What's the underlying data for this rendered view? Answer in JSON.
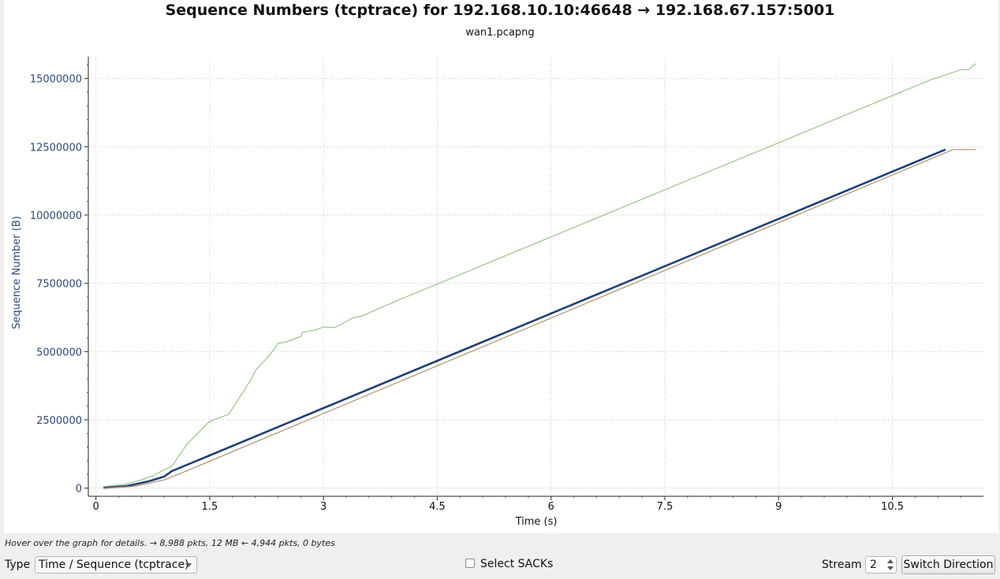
{
  "chart_data": {
    "type": "line",
    "title": "Sequence Numbers (tcptrace) for 192.168.10.10:46648 → 192.168.67.157:5001",
    "subtitle": "wan1.pcapng",
    "xlabel": "Time (s)",
    "ylabel": "Sequence Number (B)",
    "xlim": [
      -0.1,
      11.7
    ],
    "ylim": [
      -300000,
      15800000
    ],
    "x_ticks": [
      "0",
      "1.5",
      "3",
      "4.5",
      "6",
      "7.5",
      "9",
      "10.5"
    ],
    "x_tick_values": [
      0,
      1.5,
      3,
      4.5,
      6,
      7.5,
      9,
      10.5
    ],
    "y_ticks": [
      "0",
      "2500000",
      "5000000",
      "7500000",
      "10000000",
      "12500000",
      "15000000"
    ],
    "y_tick_values": [
      0,
      2500000,
      5000000,
      7500000,
      10000000,
      12500000,
      15000000
    ],
    "grid": true,
    "colors": {
      "segments": "#1f3f7a",
      "ack": "#b0906a",
      "window": "#8fc07a",
      "axis_text": "#2a4a7a"
    },
    "series": [
      {
        "key": "window",
        "color": "#8fc07a",
        "x": [
          0.1,
          0.4,
          0.6,
          0.75,
          0.85,
          1.0,
          1.2,
          1.5,
          1.75,
          2.05,
          2.1,
          2.3,
          2.4,
          2.5,
          2.7,
          2.72,
          2.9,
          3.0,
          3.15,
          3.3,
          3.4,
          3.5,
          4.0,
          5.0,
          6.0,
          7.0,
          8.0,
          9.0,
          10.0,
          11.0,
          11.4,
          11.5,
          11.6
        ],
        "y": [
          50000,
          150000,
          300000,
          450000,
          600000,
          800000,
          1600000,
          2450000,
          2700000,
          4000000,
          4300000,
          4900000,
          5300000,
          5350000,
          5550000,
          5700000,
          5800000,
          5900000,
          5880000,
          6100000,
          6250000,
          6300000,
          6900000,
          8050000,
          9200000,
          10350000,
          11500000,
          12650000,
          13800000,
          14950000,
          15320000,
          15320000,
          15550000
        ]
      },
      {
        "key": "segments",
        "color": "#1f3f7a",
        "x": [
          0.1,
          0.4,
          0.7,
          0.9,
          1.0,
          11.2
        ],
        "y": [
          10000,
          70000,
          250000,
          420000,
          620000,
          12400000
        ]
      },
      {
        "key": "ack",
        "color": "#b0906a",
        "x": [
          0.1,
          0.5,
          0.9,
          1.1,
          11.3,
          11.6
        ],
        "y": [
          0,
          60000,
          300000,
          520000,
          12400000,
          12400000
        ]
      }
    ]
  },
  "hint_text": "Hover over the graph for details. → 8,988 pkts, 12 MB ← 4,944 pkts, 0 bytes",
  "controls": {
    "type_label": "Type",
    "type_value": "Time / Sequence (tcptrace)",
    "sack_label": "Select SACKs",
    "stream_label": "Stream",
    "stream_value": "2",
    "switch_label": "Switch Direction"
  }
}
